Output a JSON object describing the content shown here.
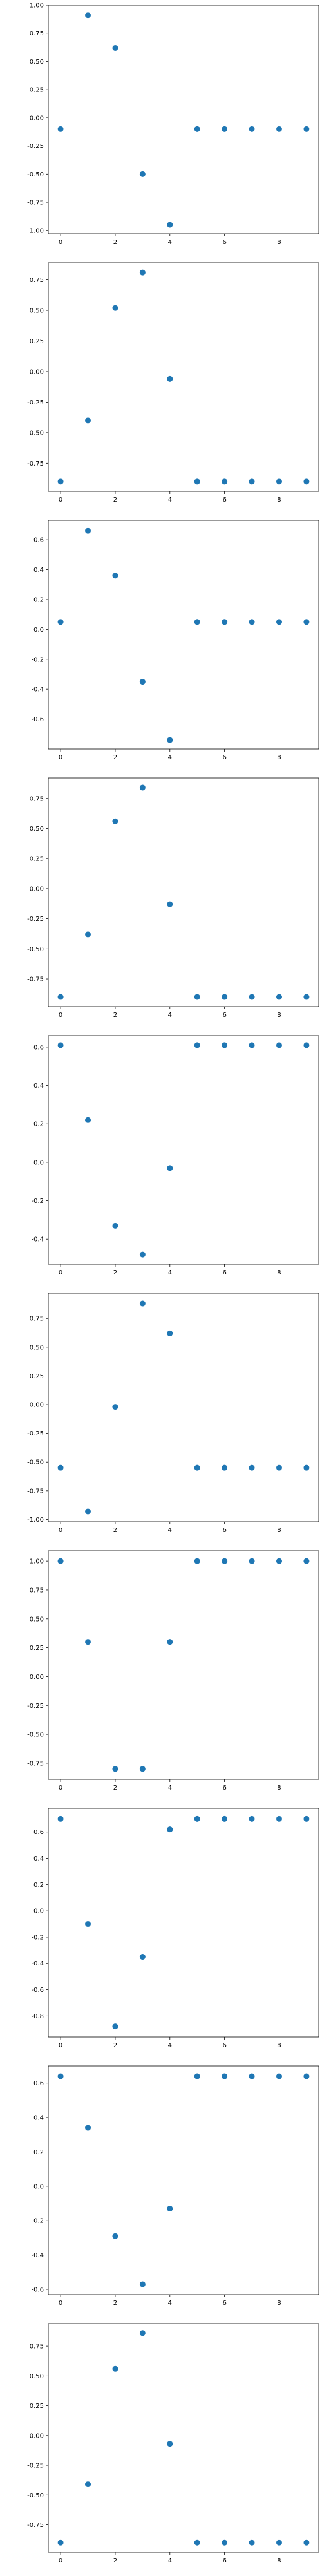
{
  "colors": {
    "marker": "#1f77b4",
    "axes": "#000000",
    "background": "#ffffff"
  },
  "chart_data": [
    {
      "type": "scatter",
      "x": [
        0,
        1,
        2,
        3,
        4,
        5,
        6,
        7,
        8,
        9
      ],
      "y": [
        -0.1,
        0.91,
        0.62,
        -0.5,
        -0.95,
        -0.1,
        -0.1,
        -0.1,
        -0.1,
        -0.1
      ],
      "ylim": [
        -1.03,
        1.0
      ],
      "yticks": [
        "1.00",
        "0.75",
        "0.50",
        "0.25",
        "0.00",
        "-0.25",
        "-0.50",
        "-0.75",
        "-1.00"
      ],
      "xticks": [
        "0",
        "2",
        "4",
        "6",
        "8"
      ],
      "title": "",
      "xlabel": "",
      "ylabel": "",
      "grid": false
    },
    {
      "type": "scatter",
      "x": [
        0,
        1,
        2,
        3,
        4,
        5,
        6,
        7,
        8,
        9
      ],
      "y": [
        -0.9,
        -0.4,
        0.52,
        0.81,
        -0.06,
        -0.9,
        -0.9,
        -0.9,
        -0.9,
        -0.9
      ],
      "ylim": [
        -0.98,
        0.89
      ],
      "yticks": [
        "0.75",
        "0.50",
        "0.25",
        "0.00",
        "-0.25",
        "-0.50",
        "-0.75"
      ],
      "xticks": [
        "0",
        "2",
        "4",
        "6",
        "8"
      ],
      "title": "",
      "xlabel": "",
      "ylabel": "",
      "grid": false
    },
    {
      "type": "scatter",
      "x": [
        0,
        1,
        2,
        3,
        4,
        5,
        6,
        7,
        8,
        9
      ],
      "y": [
        0.05,
        0.66,
        0.36,
        -0.35,
        -0.74,
        0.05,
        0.05,
        0.05,
        0.05,
        0.05
      ],
      "ylim": [
        -0.8,
        0.73
      ],
      "yticks": [
        "0.6",
        "0.4",
        "0.2",
        "0.0",
        "-0.2",
        "-0.4",
        "-0.6"
      ],
      "xticks": [
        "0",
        "2",
        "4",
        "6",
        "8"
      ],
      "title": "",
      "xlabel": "",
      "ylabel": "",
      "grid": false
    },
    {
      "type": "scatter",
      "x": [
        0,
        1,
        2,
        3,
        4,
        5,
        6,
        7,
        8,
        9
      ],
      "y": [
        -0.9,
        -0.38,
        0.56,
        0.84,
        -0.13,
        -0.9,
        -0.9,
        -0.9,
        -0.9,
        -0.9
      ],
      "ylim": [
        -0.98,
        0.92
      ],
      "yticks": [
        "0.75",
        "0.50",
        "0.25",
        "0.00",
        "-0.25",
        "-0.50",
        "-0.75"
      ],
      "xticks": [
        "0",
        "2",
        "4",
        "6",
        "8"
      ],
      "title": "",
      "xlabel": "",
      "ylabel": "",
      "grid": false
    },
    {
      "type": "scatter",
      "x": [
        0,
        1,
        2,
        3,
        4,
        5,
        6,
        7,
        8,
        9
      ],
      "y": [
        0.61,
        0.22,
        -0.33,
        -0.48,
        -0.03,
        0.61,
        0.61,
        0.61,
        0.61,
        0.61
      ],
      "ylim": [
        -0.53,
        0.66
      ],
      "yticks": [
        "0.6",
        "0.4",
        "0.2",
        "0.0",
        "-0.2",
        "-0.4"
      ],
      "xticks": [
        "0",
        "2",
        "4",
        "6",
        "8"
      ],
      "title": "",
      "xlabel": "",
      "ylabel": "",
      "grid": false
    },
    {
      "type": "scatter",
      "x": [
        0,
        1,
        2,
        3,
        4,
        5,
        6,
        7,
        8,
        9
      ],
      "y": [
        -0.55,
        -0.93,
        -0.02,
        0.88,
        0.62,
        -0.55,
        -0.55,
        -0.55,
        -0.55,
        -0.55
      ],
      "ylim": [
        -1.02,
        0.97
      ],
      "yticks": [
        "0.75",
        "0.50",
        "0.25",
        "0.00",
        "-0.25",
        "-0.50",
        "-0.75",
        "-1.00"
      ],
      "xticks": [
        "0",
        "2",
        "4",
        "6",
        "8"
      ],
      "title": "",
      "xlabel": "",
      "ylabel": "",
      "grid": false
    },
    {
      "type": "scatter",
      "x": [
        0,
        1,
        2,
        3,
        4,
        5,
        6,
        7,
        8,
        9
      ],
      "y": [
        1.0,
        0.3,
        -0.8,
        -0.8,
        0.3,
        1.0,
        1.0,
        1.0,
        1.0,
        1.0
      ],
      "ylim": [
        -0.89,
        1.09
      ],
      "yticks": [
        "1.00",
        "0.75",
        "0.50",
        "0.25",
        "0.00",
        "-0.25",
        "-0.50",
        "-0.75"
      ],
      "xticks": [
        "0",
        "2",
        "4",
        "6",
        "8"
      ],
      "title": "",
      "xlabel": "",
      "ylabel": "",
      "grid": false
    },
    {
      "type": "scatter",
      "x": [
        0,
        1,
        2,
        3,
        4,
        5,
        6,
        7,
        8,
        9
      ],
      "y": [
        0.7,
        -0.1,
        -0.88,
        -0.35,
        0.62,
        0.7,
        0.7,
        0.7,
        0.7,
        0.7
      ],
      "ylim": [
        -0.96,
        0.78
      ],
      "yticks": [
        "0.6",
        "0.4",
        "0.2",
        "0.0",
        "-0.2",
        "-0.4",
        "-0.6",
        "-0.8"
      ],
      "xticks": [
        "0",
        "2",
        "4",
        "6",
        "8"
      ],
      "title": "",
      "xlabel": "",
      "ylabel": "",
      "grid": false
    },
    {
      "type": "scatter",
      "x": [
        0,
        1,
        2,
        3,
        4,
        5,
        6,
        7,
        8,
        9
      ],
      "y": [
        0.64,
        0.34,
        -0.29,
        -0.57,
        -0.13,
        0.64,
        0.64,
        0.64,
        0.64,
        0.64
      ],
      "ylim": [
        -0.63,
        0.7
      ],
      "yticks": [
        "0.6",
        "0.4",
        "0.2",
        "0.0",
        "-0.2",
        "-0.4",
        "-0.6"
      ],
      "xticks": [
        "0",
        "2",
        "4",
        "6",
        "8"
      ],
      "title": "",
      "xlabel": "",
      "ylabel": "",
      "grid": false
    },
    {
      "type": "scatter",
      "x": [
        0,
        1,
        2,
        3,
        4,
        5,
        6,
        7,
        8,
        9
      ],
      "y": [
        -0.9,
        -0.41,
        0.56,
        0.86,
        -0.07,
        -0.9,
        -0.9,
        -0.9,
        -0.9,
        -0.9
      ],
      "ylim": [
        -0.98,
        0.94
      ],
      "yticks": [
        "0.75",
        "0.50",
        "0.25",
        "0.00",
        "-0.25",
        "-0.50",
        "-0.75"
      ],
      "xticks": [
        "0",
        "2",
        "4",
        "6",
        "8"
      ],
      "title": "",
      "xlabel": "",
      "ylabel": "",
      "grid": false
    }
  ]
}
